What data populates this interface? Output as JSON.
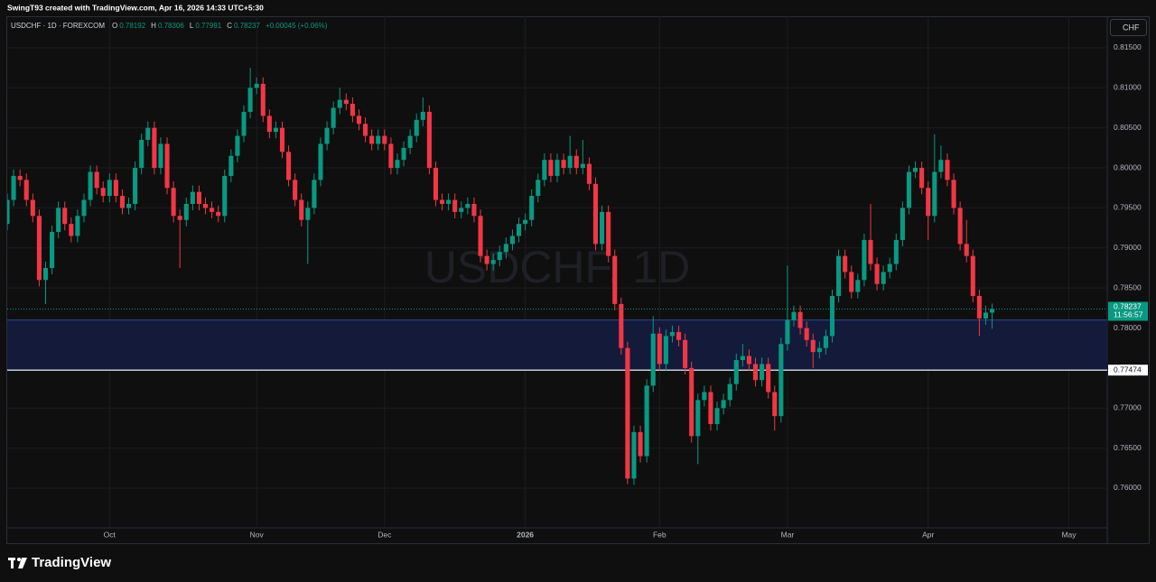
{
  "header": {
    "credit": "SwingT93 created with TradingView.com, Apr 16, 2026 14:33 UTC+5:30",
    "logo": "TradingView",
    "currency_button": "CHF"
  },
  "chart_data": {
    "type": "candlestick",
    "symbol": "USDCHF · 1D · FOREXCOM",
    "watermark": "USDCHF, 1D",
    "ohlc_labels": [
      "O",
      "H",
      "L",
      "C"
    ],
    "change_label": "+0.00045 (+0.06%)",
    "countdown": "11:56:57",
    "up_color": "#089981",
    "down_color": "#f23645",
    "open": [
      0.793,
      0.796,
      0.799,
      0.7985,
      0.796,
      0.794,
      0.786,
      0.7875,
      0.792,
      0.795,
      0.793,
      0.7915,
      0.794,
      0.796,
      0.7995,
      0.7975,
      0.7965,
      0.7985,
      0.7965,
      0.795,
      0.7955,
      0.8,
      0.8035,
      0.805,
      0.8,
      0.803,
      0.7975,
      0.794,
      0.7935,
      0.7955,
      0.797,
      0.7955,
      0.795,
      0.7945,
      0.794,
      0.799,
      0.8015,
      0.804,
      0.807,
      0.81,
      0.8105,
      0.8065,
      0.8045,
      0.805,
      0.802,
      0.7985,
      0.796,
      0.7935,
      0.795,
      0.7985,
      0.803,
      0.805,
      0.8075,
      0.8085,
      0.808,
      0.8065,
      0.8055,
      0.804,
      0.803,
      0.804,
      0.803,
      0.8,
      0.801,
      0.8025,
      0.804,
      0.806,
      0.807,
      0.8,
      0.796,
      0.7955,
      0.796,
      0.7945,
      0.795,
      0.7955,
      0.794,
      0.789,
      0.788,
      0.7885,
      0.7895,
      0.7905,
      0.7915,
      0.793,
      0.7935,
      0.7965,
      0.7985,
      0.801,
      0.799,
      0.801,
      0.8,
      0.8015,
      0.8,
      0.8005,
      0.798,
      0.7905,
      0.7945,
      0.789,
      0.783,
      0.7775,
      0.7612,
      0.767,
      0.764,
      0.7728,
      0.7793,
      0.7755,
      0.779,
      0.7795,
      0.7785,
      0.775,
      0.7665,
      0.771,
      0.772,
      0.768,
      0.77,
      0.771,
      0.773,
      0.776,
      0.7765,
      0.7755,
      0.7735,
      0.7755,
      0.772,
      0.769,
      0.778,
      0.781,
      0.782,
      0.78,
      0.7785,
      0.777,
      0.7775,
      0.779,
      0.784,
      0.789,
      0.787,
      0.7845,
      0.786,
      0.791,
      0.788,
      0.7855,
      0.787,
      0.788,
      0.791,
      0.795,
      0.7995,
      0.8,
      0.7975,
      0.794,
      0.7995,
      0.801,
      0.7985,
      0.795,
      0.7905,
      0.789,
      0.784,
      0.7812,
      0.78192
    ],
    "high": [
      0.7968,
      0.7998,
      0.7998,
      0.7993,
      0.7968,
      0.7948,
      0.7883,
      0.7928,
      0.7958,
      0.7958,
      0.7938,
      0.7948,
      0.7968,
      0.8003,
      0.8003,
      0.7983,
      0.7993,
      0.7993,
      0.7973,
      0.7963,
      0.8008,
      0.8043,
      0.8058,
      0.8058,
      0.8038,
      0.8038,
      0.7983,
      0.7948,
      0.7963,
      0.7978,
      0.7978,
      0.7963,
      0.7958,
      0.7953,
      0.7998,
      0.8023,
      0.8048,
      0.8078,
      0.8125,
      0.8113,
      0.8113,
      0.8073,
      0.8058,
      0.8058,
      0.8028,
      0.7993,
      0.7968,
      0.7958,
      0.7993,
      0.8038,
      0.8058,
      0.8083,
      0.81,
      0.8093,
      0.8088,
      0.8073,
      0.8063,
      0.8048,
      0.8048,
      0.8048,
      0.8038,
      0.8018,
      0.8033,
      0.8048,
      0.8068,
      0.8088,
      0.8078,
      0.8008,
      0.7968,
      0.7968,
      0.7968,
      0.7958,
      0.7963,
      0.7963,
      0.7948,
      0.7898,
      0.7893,
      0.7903,
      0.7913,
      0.7923,
      0.7938,
      0.7943,
      0.7973,
      0.7993,
      0.8018,
      0.8018,
      0.8018,
      0.8018,
      0.804,
      0.8023,
      0.8035,
      0.8013,
      0.7988,
      0.7953,
      0.7953,
      0.7898,
      0.7838,
      0.7783,
      0.7678,
      0.7678,
      0.7736,
      0.7815,
      0.7801,
      0.7798,
      0.7803,
      0.7803,
      0.7793,
      0.7758,
      0.7718,
      0.7728,
      0.7728,
      0.7708,
      0.7718,
      0.7738,
      0.7768,
      0.778,
      0.7773,
      0.7763,
      0.7763,
      0.7763,
      0.7728,
      0.7788,
      0.7878,
      0.7828,
      0.7828,
      0.7808,
      0.7793,
      0.7783,
      0.7798,
      0.7848,
      0.7898,
      0.7898,
      0.7878,
      0.7868,
      0.7918,
      0.7955,
      0.7888,
      0.7878,
      0.7888,
      0.7918,
      0.7958,
      0.8003,
      0.8008,
      0.8008,
      0.7983,
      0.8042,
      0.8028,
      0.8018,
      0.7993,
      0.7958,
      0.7935,
      0.7898,
      0.7848,
      0.7828,
      0.78306
    ],
    "low": [
      0.7922,
      0.7952,
      0.7977,
      0.7952,
      0.7932,
      0.7852,
      0.783,
      0.7867,
      0.7912,
      0.7922,
      0.7907,
      0.7907,
      0.7932,
      0.7952,
      0.7967,
      0.7957,
      0.7957,
      0.7957,
      0.7942,
      0.7942,
      0.7947,
      0.7992,
      0.8027,
      0.7992,
      0.7992,
      0.7967,
      0.7932,
      0.7875,
      0.7927,
      0.7947,
      0.7947,
      0.7942,
      0.7937,
      0.7932,
      0.7932,
      0.7982,
      0.8007,
      0.8032,
      0.8062,
      0.8092,
      0.8057,
      0.8037,
      0.8037,
      0.8012,
      0.7977,
      0.7952,
      0.7927,
      0.788,
      0.7942,
      0.7977,
      0.8022,
      0.8042,
      0.8067,
      0.8072,
      0.8057,
      0.8047,
      0.8032,
      0.8022,
      0.8022,
      0.8022,
      0.7992,
      0.7992,
      0.8002,
      0.8017,
      0.8032,
      0.8052,
      0.7992,
      0.7952,
      0.7947,
      0.7947,
      0.7937,
      0.7937,
      0.7942,
      0.7932,
      0.7882,
      0.7872,
      0.7872,
      0.7877,
      0.7887,
      0.7897,
      0.7907,
      0.7922,
      0.7927,
      0.7957,
      0.7977,
      0.7982,
      0.7982,
      0.7992,
      0.7992,
      0.7992,
      0.7992,
      0.7972,
      0.7897,
      0.7897,
      0.7882,
      0.7822,
      0.7767,
      0.7605,
      0.7604,
      0.7632,
      0.7632,
      0.772,
      0.7747,
      0.7747,
      0.7782,
      0.7777,
      0.7742,
      0.7657,
      0.763,
      0.7702,
      0.7672,
      0.7672,
      0.7692,
      0.7702,
      0.7722,
      0.7752,
      0.7747,
      0.7727,
      0.7727,
      0.7712,
      0.7672,
      0.7682,
      0.7772,
      0.7802,
      0.7792,
      0.7777,
      0.775,
      0.7762,
      0.7767,
      0.7782,
      0.7832,
      0.7862,
      0.7837,
      0.7837,
      0.7852,
      0.7872,
      0.7847,
      0.7847,
      0.7862,
      0.7872,
      0.7902,
      0.7942,
      0.7987,
      0.7967,
      0.791,
      0.7932,
      0.7987,
      0.7977,
      0.7942,
      0.7897,
      0.7882,
      0.7832,
      0.779,
      0.7804,
      0.77991
    ],
    "close": [
      0.796,
      0.799,
      0.7985,
      0.796,
      0.794,
      0.786,
      0.7875,
      0.792,
      0.795,
      0.793,
      0.7915,
      0.794,
      0.796,
      0.7995,
      0.7975,
      0.7965,
      0.7985,
      0.7965,
      0.795,
      0.7955,
      0.8,
      0.8035,
      0.805,
      0.8,
      0.803,
      0.7975,
      0.794,
      0.7935,
      0.7955,
      0.797,
      0.7955,
      0.795,
      0.7945,
      0.794,
      0.799,
      0.8015,
      0.804,
      0.807,
      0.81,
      0.8105,
      0.8065,
      0.8045,
      0.805,
      0.802,
      0.7985,
      0.796,
      0.7935,
      0.795,
      0.7985,
      0.803,
      0.805,
      0.8075,
      0.8085,
      0.808,
      0.8065,
      0.8055,
      0.804,
      0.803,
      0.804,
      0.803,
      0.8,
      0.801,
      0.8025,
      0.804,
      0.806,
      0.807,
      0.8,
      0.796,
      0.7955,
      0.796,
      0.7945,
      0.795,
      0.7955,
      0.794,
      0.789,
      0.788,
      0.7885,
      0.7895,
      0.7905,
      0.7915,
      0.793,
      0.7935,
      0.7965,
      0.7985,
      0.801,
      0.799,
      0.801,
      0.8,
      0.8015,
      0.8,
      0.8005,
      0.798,
      0.7905,
      0.7945,
      0.789,
      0.783,
      0.7775,
      0.7612,
      0.767,
      0.764,
      0.7728,
      0.7793,
      0.7755,
      0.779,
      0.7795,
      0.7785,
      0.775,
      0.7665,
      0.771,
      0.772,
      0.768,
      0.77,
      0.771,
      0.773,
      0.776,
      0.7765,
      0.7755,
      0.7735,
      0.7755,
      0.772,
      0.769,
      0.778,
      0.781,
      0.782,
      0.78,
      0.7785,
      0.777,
      0.7775,
      0.779,
      0.784,
      0.789,
      0.787,
      0.7845,
      0.786,
      0.791,
      0.788,
      0.7855,
      0.787,
      0.788,
      0.791,
      0.795,
      0.7995,
      0.8,
      0.7975,
      0.794,
      0.7995,
      0.801,
      0.7985,
      0.795,
      0.7905,
      0.789,
      0.784,
      0.7812,
      0.78192,
      0.78237
    ],
    "xlim": [
      0,
      172
    ],
    "xticks": [
      {
        "value": 16,
        "label": "Oct"
      },
      {
        "value": 39,
        "label": "Nov"
      },
      {
        "value": 59,
        "label": "Dec"
      },
      {
        "value": 81,
        "label": "2026"
      },
      {
        "value": 102,
        "label": "Feb"
      },
      {
        "value": 122,
        "label": "Mar"
      },
      {
        "value": 144,
        "label": "Apr"
      },
      {
        "value": 166,
        "label": "May"
      }
    ],
    "ylim": [
      0.75504,
      0.81894
    ],
    "yticks": [
      {
        "value": 0.815,
        "label": "0.81500"
      },
      {
        "value": 0.81,
        "label": "0.81000"
      },
      {
        "value": 0.805,
        "label": "0.80500"
      },
      {
        "value": 0.8,
        "label": "0.80000"
      },
      {
        "value": 0.795,
        "label": "0.79500"
      },
      {
        "value": 0.79,
        "label": "0.79000"
      },
      {
        "value": 0.785,
        "label": "0.78500"
      },
      {
        "value": 0.78,
        "label": "0.78000"
      },
      {
        "value": 0.775,
        "label": "0.77500"
      },
      {
        "value": 0.77,
        "label": "0.77000"
      },
      {
        "value": 0.765,
        "label": "0.76500"
      },
      {
        "value": 0.76,
        "label": "0.76000"
      }
    ],
    "grid": true,
    "zone": {
      "top": 0.781,
      "bottom": 0.77474,
      "color": "#141b3a",
      "edge_color": "#2e4596"
    },
    "hline": {
      "value": 0.77474,
      "color": "#c8cbd3"
    }
  }
}
